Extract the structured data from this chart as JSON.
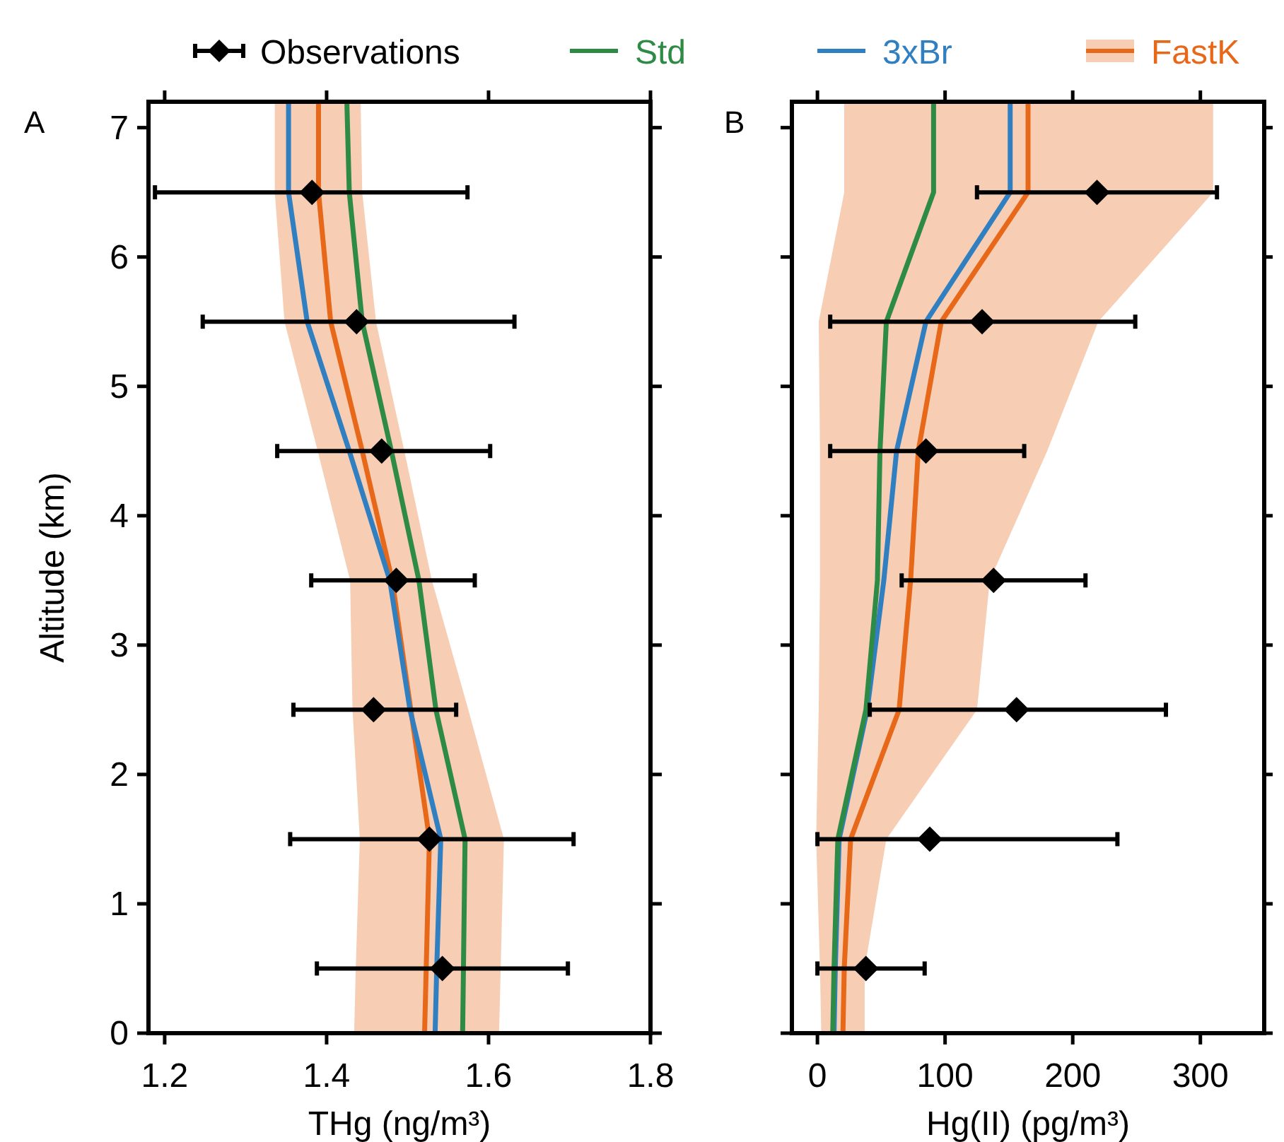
{
  "chart_data": [
    {
      "type": "line",
      "orientation": "horizontal",
      "xlabel": "THg (ng/m³)",
      "ylabel": "Altitude (km)",
      "xlim": [
        1.18,
        1.8
      ],
      "xticks": [
        1.2,
        1.4,
        1.6,
        1.8
      ],
      "ylim": [
        0,
        7.2
      ],
      "yticks": [
        0,
        1,
        2,
        3,
        4,
        5,
        6,
        7
      ],
      "legend": "top",
      "annotations": [
        "A"
      ],
      "series": [
        {
          "name": "Observations",
          "type": "scatter",
          "color": "#000000",
          "marker": "diamond",
          "x": [
            0.5,
            1.5,
            2.5,
            3.5,
            4.5,
            5.5,
            6.5
          ],
          "values": [
            1.543,
            1.527,
            1.458,
            1.486,
            1.468,
            1.437,
            1.382
          ],
          "errors": [
            [
              1.388,
              1.698
            ],
            [
              1.355,
              1.705
            ],
            [
              1.359,
              1.56
            ],
            [
              1.381,
              1.583
            ],
            [
              1.339,
              1.602
            ],
            [
              1.247,
              1.632
            ],
            [
              1.188,
              1.574
            ]
          ]
        },
        {
          "name": "Std",
          "color": "#2e8b45",
          "x": [
            0,
            0.5,
            1.5,
            2.5,
            3.5,
            4.5,
            5.5,
            6.5,
            7.2
          ],
          "values": [
            1.568,
            1.569,
            1.571,
            1.535,
            1.514,
            1.48,
            1.444,
            1.428,
            1.425
          ]
        },
        {
          "name": "3xBr",
          "color": "#2f7fc1",
          "x": [
            0,
            0.5,
            1.5,
            2.5,
            3.5,
            4.5,
            5.5,
            6.5,
            7.2
          ],
          "values": [
            1.534,
            1.536,
            1.541,
            1.503,
            1.478,
            1.428,
            1.376,
            1.353,
            1.353
          ]
        },
        {
          "name": "FastK",
          "color": "#e8681a",
          "x": [
            0,
            0.5,
            1.5,
            2.5,
            3.5,
            4.5,
            5.5,
            6.5,
            7.2
          ],
          "values": [
            1.521,
            1.523,
            1.527,
            1.504,
            1.481,
            1.444,
            1.405,
            1.39,
            1.39
          ],
          "lower": [
            1.434,
            1.436,
            1.441,
            1.432,
            1.429,
            1.389,
            1.348,
            1.336,
            1.336
          ],
          "upper": [
            1.613,
            1.615,
            1.619,
            1.575,
            1.53,
            1.496,
            1.461,
            1.444,
            1.442
          ]
        }
      ]
    },
    {
      "type": "line",
      "orientation": "horizontal",
      "xlabel": "Hg(II) (pg/m³)",
      "xlim": [
        -20,
        350
      ],
      "xticks": [
        0,
        100,
        200,
        300
      ],
      "ylim": [
        0,
        7.2
      ],
      "yticks": [
        0,
        1,
        2,
        3,
        4,
        5,
        6,
        7
      ],
      "tick_labels": "x",
      "annotations": [
        "B"
      ],
      "series": [
        {
          "type": "scatter",
          "color": "#000000",
          "marker": "diamond",
          "x": [
            0.5,
            1.5,
            2.5,
            3.5,
            4.5,
            5.5,
            6.5
          ],
          "values": [
            38,
            88,
            156,
            138,
            85,
            129,
            219
          ],
          "errors": [
            [
              0,
              84
            ],
            [
              0,
              235
            ],
            [
              41,
              273
            ],
            [
              66,
              210
            ],
            [
              10,
              162
            ],
            [
              10,
              249
            ],
            [
              125,
              313
            ]
          ]
        },
        {
          "color": "#2e8b45",
          "x": [
            0,
            0.5,
            1.5,
            2.5,
            3.5,
            4.5,
            5.5,
            6.5,
            7.2
          ],
          "values": [
            12,
            13,
            16,
            38,
            47,
            49,
            54,
            91,
            91
          ]
        },
        {
          "color": "#2f7fc1",
          "x": [
            0,
            0.5,
            1.5,
            2.5,
            3.5,
            4.5,
            5.5,
            6.5,
            7.2
          ],
          "values": [
            13,
            14,
            17,
            39,
            52,
            62,
            85,
            151,
            151
          ]
        },
        {
          "color": "#e8681a",
          "x": [
            0,
            0.5,
            1.5,
            2.5,
            3.5,
            4.5,
            5.5,
            6.5,
            7.2
          ],
          "values": [
            20,
            21,
            26,
            64,
            73,
            79,
            97,
            165,
            165
          ],
          "lower": [
            3,
            2,
            -1,
            1,
            2,
            2,
            1,
            21,
            21
          ],
          "upper": [
            37,
            37,
            54,
            125,
            135,
            180,
            220,
            310,
            310
          ]
        }
      ]
    }
  ]
}
